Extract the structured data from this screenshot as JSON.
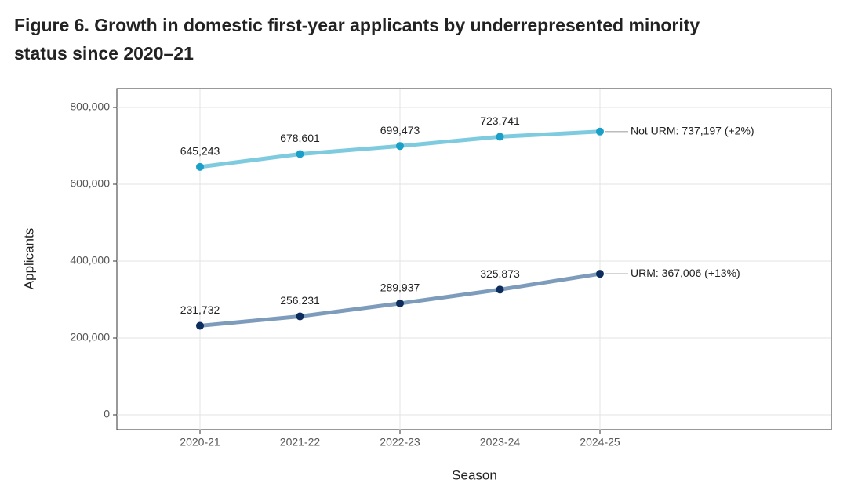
{
  "chart_data": {
    "type": "line",
    "title": "Figure 6. Growth in domestic first-year applicants by underrepresented minority status since 2020–21",
    "x_label": "Season",
    "y_label": "Applicants",
    "categories": [
      "2020-21",
      "2021-22",
      "2022-23",
      "2023-24",
      "2024-25"
    ],
    "series": [
      {
        "color": "#7ecbe0",
        "point_color": "#1aa0c8",
        "values": [
          645243,
          678601,
          699473,
          723741,
          737197
        ],
        "value_labels": [
          "645,243",
          "678,601",
          "699,473",
          "723,741",
          null
        ],
        "end_label": "Not URM: 737,197 (+2%)"
      },
      {
        "color": "#7d9bbb",
        "point_color": "#0d2d5e",
        "values": [
          231732,
          256231,
          289937,
          325873,
          367006
        ],
        "value_labels": [
          "231,732",
          "256,231",
          "289,937",
          "325,873",
          null
        ],
        "end_label": "URM: 367,006 (+13%)"
      }
    ],
    "ylim": [
      -38800,
      849000
    ],
    "yticks": [
      0,
      {
        "value": 200000,
        "label": "200,000"
      },
      {
        "value": 400000,
        "label": "400,000"
      },
      {
        "value": 600000,
        "label": "600,000"
      },
      {
        "value": 800000,
        "label": "800,000"
      }
    ],
    "grid": true
  }
}
